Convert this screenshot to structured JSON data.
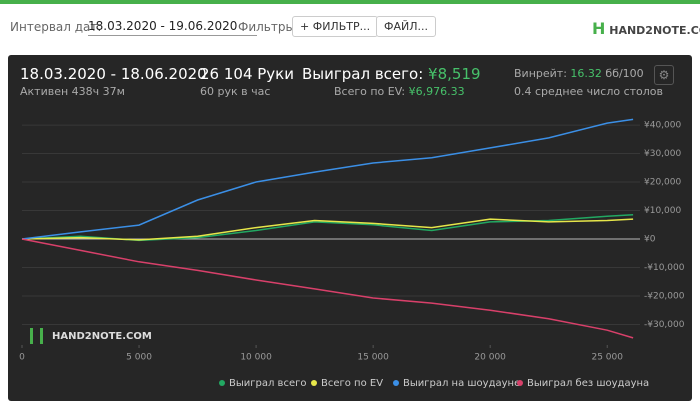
{
  "header": {
    "date_label": "Интервал дат:",
    "date_range": "18.03.2020 - 19.06.2020",
    "filters_label": "Фильтры:",
    "filter_button": "ФИЛЬТР...",
    "file_button": "ФАЙЛ...",
    "logo": "HAND2NOTE.COM"
  },
  "stats": {
    "period": "18.03.2020 - 18.06.2020",
    "active": "Активен 438ч 37м",
    "hands": "26 104 Руки",
    "hands_per_hour": "60 рук в час",
    "won_label": "Выиграл всего:",
    "won_value": "¥8,519",
    "ev_label": "Всего по EV:",
    "ev_value": "¥6,976.33",
    "winrate_label": "Винрейт:",
    "winrate_value": "16.32",
    "winrate_unit": "бб/100",
    "tables": "0.4 среднее число столов"
  },
  "watermark": "HAND2NOTE.COM",
  "chart_data": {
    "type": "line",
    "x": [
      0,
      2500,
      5000,
      7500,
      10000,
      12500,
      15000,
      17500,
      20000,
      22500,
      25000,
      26104
    ],
    "series": [
      {
        "name": "Выиграл всего",
        "color": "#22a862",
        "values": [
          0,
          1000,
          -500,
          500,
          3000,
          6000,
          5000,
          3000,
          6000,
          6500,
          8000,
          8519
        ]
      },
      {
        "name": "Всего по EV",
        "color": "#e6e64a",
        "values": [
          0,
          500,
          -300,
          1000,
          4000,
          6500,
          5500,
          4000,
          7000,
          6000,
          6500,
          6976
        ]
      },
      {
        "name": "Выиграл на шоудауне",
        "color": "#3b8fe6",
        "values": [
          0,
          2500,
          4900,
          13700,
          20000,
          23500,
          26700,
          28500,
          32000,
          35500,
          40700,
          42000
        ]
      },
      {
        "name": "Выиграл без шоудауна",
        "color": "#d8406a",
        "values": [
          0,
          -4000,
          -8000,
          -11000,
          -14400,
          -17500,
          -20700,
          -22500,
          -25000,
          -28000,
          -32000,
          -34700
        ]
      }
    ],
    "xlim": [
      0,
      26400
    ],
    "xticks": [
      0,
      {
        "value": 5000,
        "label": "5 000"
      },
      {
        "value": 10000,
        "label": "10 000"
      },
      {
        "value": 15000,
        "label": "15 000"
      },
      {
        "value": 20000,
        "label": "20 000"
      },
      {
        "value": 25000,
        "label": "25 000"
      }
    ],
    "ylim": [
      -37200,
      48800
    ],
    "yticks": [
      {
        "value": -30000,
        "label": "-¥30,000"
      },
      {
        "value": -20000,
        "label": "-¥20,000"
      },
      {
        "value": -10000,
        "label": "-¥10,000"
      },
      {
        "value": 0,
        "label": "¥0"
      },
      {
        "value": 10000,
        "label": "¥10,000"
      },
      {
        "value": 20000,
        "label": "¥20,000"
      },
      {
        "value": 30000,
        "label": "¥30,000"
      },
      {
        "value": 40000,
        "label": "¥40,000"
      }
    ],
    "grid": true
  }
}
